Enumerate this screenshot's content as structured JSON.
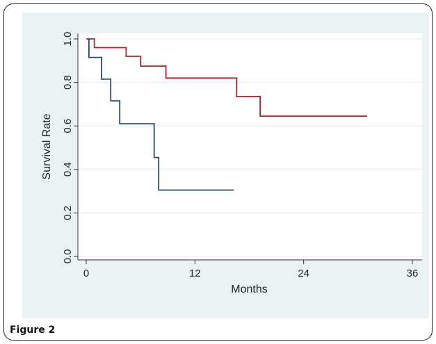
{
  "figure": {
    "caption": "Figure 2"
  },
  "chart_data": {
    "type": "line",
    "title": "",
    "xlabel": "Months",
    "ylabel": "Survival Rate",
    "xlim": [
      0,
      36
    ],
    "ylim": [
      0,
      1
    ],
    "x_ticks": [
      0,
      12,
      24,
      36
    ],
    "y_ticks": [
      0.0,
      0.2,
      0.4,
      0.6,
      0.8,
      1.0
    ],
    "x_tick_labels": [
      "0",
      "12",
      "24",
      "36"
    ],
    "y_tick_labels": [
      "0.0",
      "0.2",
      "0.4",
      "0.6",
      "0.8",
      "1.0"
    ],
    "step": true,
    "grid": "horizontal",
    "legend": "none",
    "series": [
      {
        "color": "#a32b2b",
        "x": [
          0,
          0.9,
          0.9,
          4.4,
          4.4,
          6.0,
          6.0,
          8.8,
          8.8,
          16.6,
          16.6,
          19.2,
          19.2,
          31.0
        ],
        "values": [
          1.0,
          1.0,
          0.96,
          0.96,
          0.92,
          0.92,
          0.875,
          0.875,
          0.82,
          0.82,
          0.735,
          0.735,
          0.645,
          0.645
        ]
      },
      {
        "color": "#2b4a63",
        "x": [
          0.3,
          0.3,
          1.7,
          1.7,
          2.7,
          2.7,
          3.7,
          3.7,
          7.5,
          7.5,
          8.0,
          8.0,
          16.3
        ],
        "values": [
          1.0,
          0.915,
          0.915,
          0.815,
          0.815,
          0.715,
          0.715,
          0.61,
          0.61,
          0.455,
          0.455,
          0.305,
          0.305
        ]
      }
    ]
  }
}
